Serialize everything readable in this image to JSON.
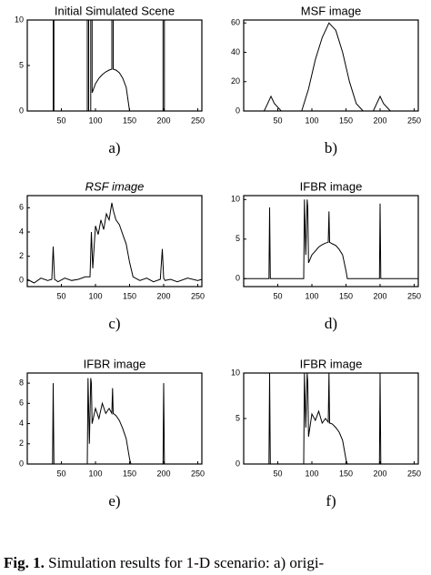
{
  "chart_data": [
    {
      "type": "line",
      "title": "Initial Simulated Scene",
      "caption": "a)",
      "color": "#000000",
      "x": [
        0,
        38,
        38,
        39,
        39,
        88,
        88,
        90,
        90,
        93,
        93,
        95,
        95,
        100,
        105,
        110,
        115,
        120,
        124,
        124,
        126,
        126,
        130,
        135,
        140,
        145,
        150,
        199,
        199,
        201,
        201,
        256
      ],
      "values": [
        0,
        0,
        10,
        10,
        0,
        0,
        10,
        10,
        0,
        0,
        10,
        10,
        2,
        3,
        3.6,
        4,
        4.3,
        4.5,
        4.6,
        10,
        10,
        4.6,
        4.5,
        4.2,
        3.6,
        2.6,
        0,
        0,
        10,
        10,
        0,
        0
      ],
      "xlim": [
        0,
        256
      ],
      "ylim": [
        0,
        10
      ],
      "xticks": [
        50,
        100,
        150,
        200,
        250
      ],
      "yticks": [
        0,
        5,
        10
      ]
    },
    {
      "type": "line",
      "title": "MSF image",
      "caption": "b)",
      "color": "#000000",
      "x": [
        0,
        30,
        35,
        40,
        45,
        55,
        85,
        95,
        105,
        115,
        125,
        135,
        145,
        155,
        165,
        175,
        190,
        200,
        205,
        215,
        256
      ],
      "values": [
        0,
        0,
        5,
        10,
        5,
        0,
        0,
        15,
        35,
        50,
        60,
        55,
        40,
        20,
        5,
        0,
        0,
        10,
        5,
        0,
        0
      ],
      "xlim": [
        0,
        256
      ],
      "ylim": [
        0,
        62
      ],
      "xticks": [
        50,
        100,
        150,
        200,
        250
      ],
      "yticks": [
        0,
        20,
        40,
        60
      ]
    },
    {
      "type": "line",
      "title": "RSF image",
      "caption": "c)",
      "color": "#000000",
      "x": [
        0,
        10,
        20,
        30,
        36,
        38,
        40,
        45,
        55,
        65,
        75,
        85,
        92,
        94,
        96,
        100,
        104,
        108,
        112,
        116,
        120,
        124,
        126,
        130,
        135,
        140,
        145,
        150,
        155,
        165,
        175,
        185,
        195,
        198,
        200,
        202,
        210,
        220,
        235,
        250,
        256
      ],
      "values": [
        0.1,
        -0.2,
        0.2,
        0,
        0.1,
        2.8,
        0.1,
        -0.1,
        0.2,
        0,
        0.1,
        0.3,
        0.3,
        4,
        1,
        4.5,
        3.8,
        5,
        4.2,
        5.5,
        5,
        6.4,
        5.8,
        5,
        4.6,
        3.8,
        3,
        1.5,
        0.3,
        0,
        0.2,
        -0.1,
        0.1,
        2.6,
        0.2,
        0,
        0.1,
        -0.1,
        0.2,
        0,
        0.1
      ],
      "xlim": [
        0,
        256
      ],
      "ylim": [
        -0.5,
        7
      ],
      "xticks": [
        50,
        100,
        150,
        200,
        250
      ],
      "yticks": [
        0,
        2,
        4,
        6
      ]
    },
    {
      "type": "line",
      "title": "IFBR image",
      "caption": "d)",
      "color": "#000000",
      "x": [
        0,
        20,
        37,
        38,
        39,
        60,
        80,
        88,
        89,
        91,
        93,
        94,
        95,
        100,
        105,
        110,
        115,
        120,
        124,
        125,
        126,
        130,
        135,
        140,
        145,
        150,
        152,
        170,
        190,
        199,
        200,
        201,
        220,
        240,
        256
      ],
      "values": [
        0,
        0,
        0,
        9,
        0,
        0,
        0,
        0,
        10,
        3,
        10,
        9,
        2,
        3,
        3.5,
        4,
        4.3,
        4.5,
        4.6,
        8.5,
        4.6,
        4.4,
        4.2,
        3.7,
        3,
        1,
        0,
        0,
        0,
        0,
        9.5,
        0,
        0,
        0,
        0
      ],
      "xlim": [
        0,
        256
      ],
      "ylim": [
        -1,
        10.5
      ],
      "xticks": [
        50,
        100,
        150,
        200,
        250
      ],
      "yticks": [
        0,
        5,
        10
      ]
    },
    {
      "type": "line",
      "title": "IFBR image",
      "caption": "e)",
      "color": "#000000",
      "x": [
        0,
        20,
        37,
        38,
        39,
        60,
        80,
        88,
        89,
        91,
        93,
        94,
        95,
        100,
        105,
        110,
        115,
        120,
        124,
        125,
        126,
        130,
        135,
        140,
        145,
        150,
        152,
        170,
        190,
        199,
        200,
        201,
        220,
        240,
        256
      ],
      "values": [
        0,
        0,
        0,
        8,
        0,
        0,
        0,
        0,
        8.5,
        2,
        8.5,
        8,
        4,
        5.5,
        4.5,
        6,
        5,
        5.5,
        5,
        7.5,
        5,
        4.8,
        4.3,
        3.5,
        2.5,
        0.5,
        0,
        0,
        0,
        0,
        8,
        0,
        0,
        0,
        0
      ],
      "xlim": [
        0,
        256
      ],
      "ylim": [
        0,
        9
      ],
      "xticks": [
        50,
        100,
        150,
        200,
        250
      ],
      "yticks": [
        0,
        2,
        4,
        6,
        8
      ]
    },
    {
      "type": "line",
      "title": "IFBR image",
      "caption": "f)",
      "color": "#000000",
      "x": [
        0,
        20,
        37,
        38,
        39,
        60,
        80,
        88,
        89,
        91,
        93,
        94,
        95,
        100,
        105,
        110,
        115,
        120,
        124,
        125,
        126,
        130,
        135,
        140,
        145,
        150,
        152,
        170,
        190,
        199,
        200,
        201,
        220,
        240,
        256
      ],
      "values": [
        0,
        0,
        0,
        10,
        0,
        0,
        0,
        0,
        10,
        4,
        10,
        9,
        3,
        5.5,
        4.8,
        5.8,
        4.5,
        5,
        4.6,
        10,
        4.5,
        4.4,
        4,
        3.5,
        2.6,
        0.5,
        0,
        0,
        0,
        0,
        10,
        0,
        0,
        0,
        0
      ],
      "xlim": [
        0,
        256
      ],
      "ylim": [
        0,
        10
      ],
      "xticks": [
        50,
        100,
        150,
        200,
        250
      ],
      "yticks": [
        0,
        5,
        10
      ]
    }
  ],
  "figure": {
    "label": "Fig. 1.",
    "text": "Simulation results for 1-D scenario: a) origi-"
  }
}
